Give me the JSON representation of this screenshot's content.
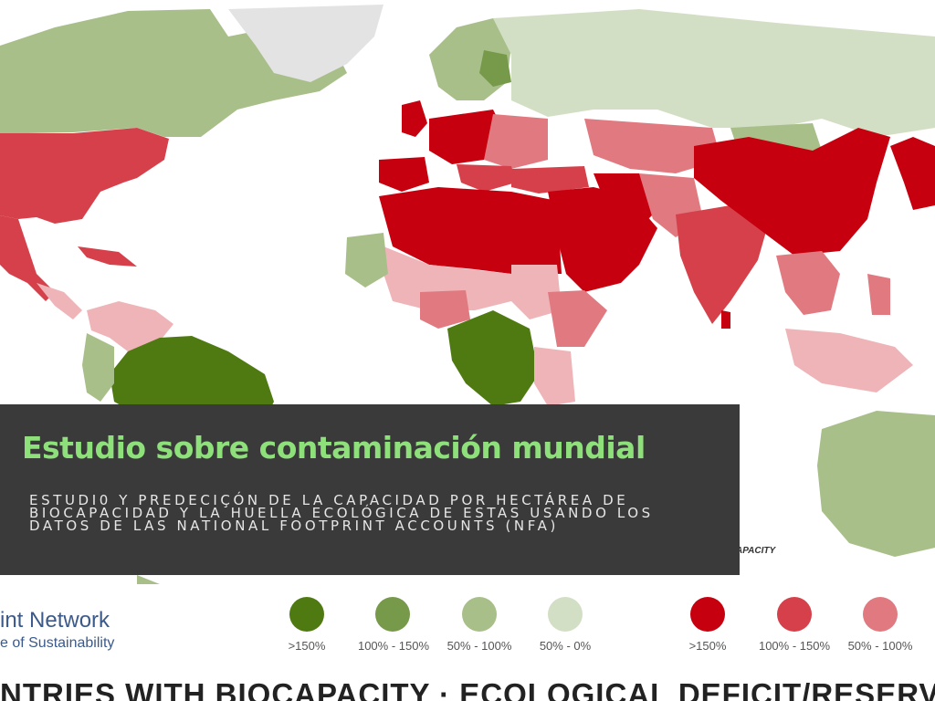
{
  "overlay": {
    "title": "Estudio sobre contaminación mundial",
    "subtitle": "ESTUDI0 Y PREDECIÇÓN DE LA CAPACIDAD POR HECTÁREA DE BIOCAPACIDAD Y LA HUELLA ECOLÓGICA DE ESTAS USANDO LOS DATOS DE LAS NATIONAL FOOTPRINT ACCOUNTS (NFA)"
  },
  "map": {
    "caption_fragment": "APACITY",
    "brand_line1": "int Network",
    "brand_line2": "e of Sustainability",
    "bottom_title": "NTRIES WITH BIOCAPACITY · ECOLOGICAL DEFICIT/RESERVE",
    "colors": {
      "reserve_gt150": "#4f7a12",
      "reserve_100_150": "#76994a",
      "reserve_50_100": "#a8bf8a",
      "reserve_50_0": "#d2dfc4",
      "deficit_gt150": "#c7000f",
      "deficit_100_150": "#d6404a",
      "deficit_50_100": "#e07a80",
      "deficit_light": "#efb4b8",
      "neutral": "#e3e3e3"
    }
  },
  "legend": {
    "reserve": [
      {
        "label": ">150%",
        "color": "#4f7a12"
      },
      {
        "label": "100% - 150%",
        "color": "#76994a"
      },
      {
        "label": "50% - 100%",
        "color": "#a8bf8a"
      },
      {
        "label": "50% - 0%",
        "color": "#d2dfc4"
      }
    ],
    "deficit": [
      {
        "label": ">150%",
        "color": "#c7000f"
      },
      {
        "label": "100% - 150%",
        "color": "#d6404a"
      },
      {
        "label": "50% - 100%",
        "color": "#e07a80"
      }
    ]
  }
}
